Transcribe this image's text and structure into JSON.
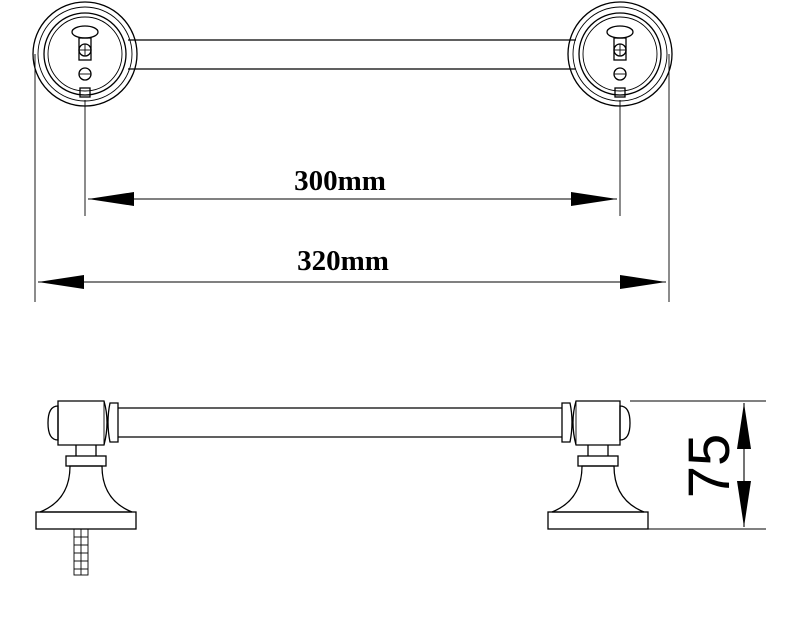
{
  "dimensions": {
    "inner_width": "300mm",
    "outer_width": "320mm",
    "projection": "75"
  },
  "colors": {
    "line": "#000000",
    "background": "#ffffff"
  }
}
